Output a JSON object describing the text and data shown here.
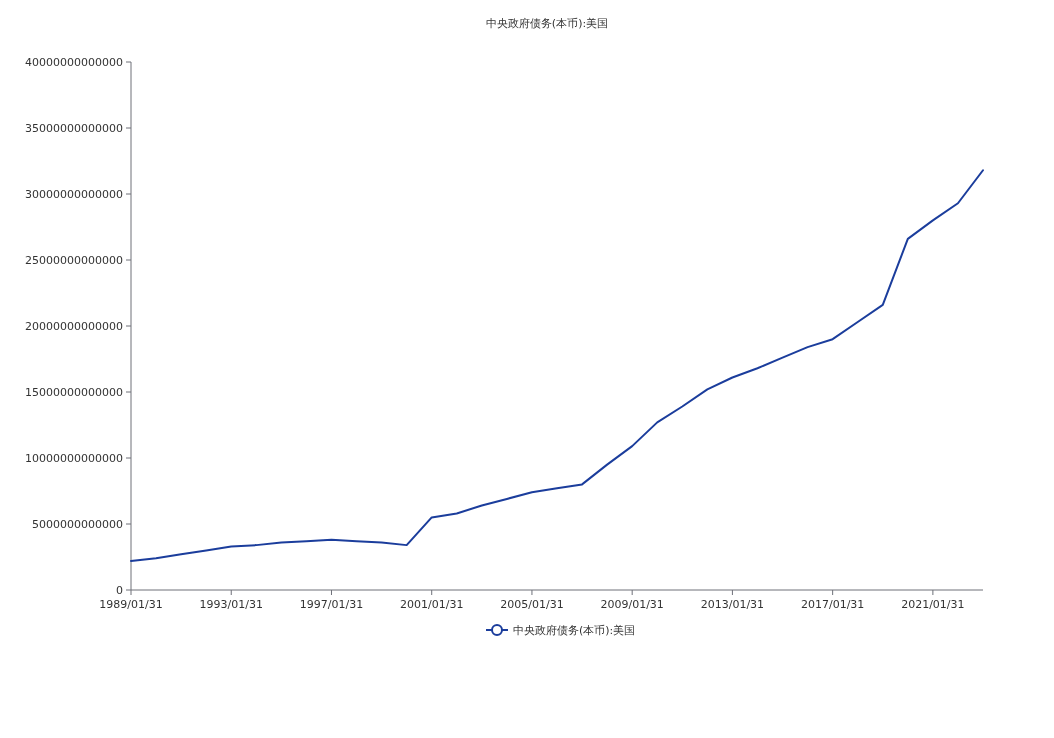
{
  "chart_data": {
    "type": "line",
    "title": "中央政府债务(本币):美国",
    "categories": [
      "1989/01/31",
      null,
      null,
      null,
      "1993/01/31",
      null,
      null,
      null,
      "1997/01/31",
      null,
      null,
      null,
      "2001/01/31",
      null,
      null,
      null,
      "2005/01/31",
      null,
      null,
      null,
      "2009/01/31",
      null,
      null,
      null,
      "2013/01/31",
      null,
      null,
      null,
      "2017/01/31",
      null,
      null,
      null,
      "2021/01/31",
      null,
      null
    ],
    "series": [
      {
        "name": "中央政府债务(本币):美国",
        "color": "#1b3d9c",
        "values": [
          2200000000000,
          2400000000000,
          2700000000000,
          3000000000000,
          3300000000000,
          3400000000000,
          3600000000000,
          3700000000000,
          3800000000000,
          3700000000000,
          3600000000000,
          3400000000000,
          5500000000000,
          5800000000000,
          6400000000000,
          6900000000000,
          7400000000000,
          7700000000000,
          8000000000000,
          9500000000000,
          10900000000000,
          12700000000000,
          13900000000000,
          15200000000000,
          16100000000000,
          16800000000000,
          17600000000000,
          18400000000000,
          19000000000000,
          20300000000000,
          21600000000000,
          26600000000000,
          28000000000000,
          29300000000000,
          31800000000000
        ]
      }
    ],
    "ylim": [
      0,
      40000000000000
    ],
    "yticks": [
      0,
      5000000000000,
      10000000000000,
      15000000000000,
      20000000000000,
      25000000000000,
      30000000000000,
      35000000000000,
      40000000000000
    ],
    "legend": "bottom"
  }
}
